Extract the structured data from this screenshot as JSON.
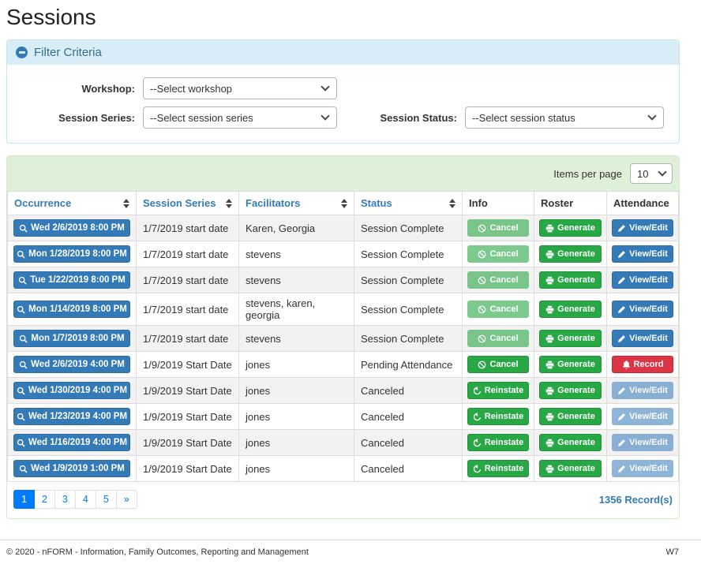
{
  "page": {
    "title": "Sessions",
    "footer": {
      "copyright": "© 2020 - nFORM - Information, Family Outcomes, Reporting and Management",
      "version": "W7"
    }
  },
  "filter": {
    "title": "Filter Criteria",
    "collapse_icon": "minus-circle-icon",
    "fields": [
      {
        "label": "Workshop:",
        "value": "--Select workshop"
      },
      {
        "label": "Session Series:",
        "value": "--Select session series"
      },
      {
        "label": "Session Status:",
        "value": "--Select session status"
      }
    ]
  },
  "table": {
    "items_per_page_label": "Items per page",
    "items_per_page_value": "10",
    "columns": [
      {
        "label": "Occurrence",
        "sortable": true
      },
      {
        "label": "Session Series",
        "sortable": true
      },
      {
        "label": "Facilitators",
        "sortable": true
      },
      {
        "label": "Status",
        "sortable": true
      },
      {
        "label": "Info",
        "sortable": false
      },
      {
        "label": "Roster",
        "sortable": false
      },
      {
        "label": "Attendance",
        "sortable": false
      }
    ],
    "rows": [
      {
        "occurrence": "Wed 2/6/2019 8:00 PM",
        "series": "1/7/2019 start date",
        "facilitators": "Karen, Georgia",
        "status": "Session Complete",
        "info": {
          "label": "Cancel",
          "icon": "ban",
          "variant": "success-disabled"
        },
        "roster": {
          "label": "Generate",
          "icon": "printer",
          "variant": "success"
        },
        "attendance": {
          "label": "View/Edit",
          "icon": "pencil",
          "variant": "primary"
        }
      },
      {
        "occurrence": "Mon 1/28/2019 8:00 PM",
        "series": "1/7/2019 start date",
        "facilitators": "stevens",
        "status": "Session Complete",
        "info": {
          "label": "Cancel",
          "icon": "ban",
          "variant": "success-disabled"
        },
        "roster": {
          "label": "Generate",
          "icon": "printer",
          "variant": "success"
        },
        "attendance": {
          "label": "View/Edit",
          "icon": "pencil",
          "variant": "primary"
        }
      },
      {
        "occurrence": "Tue 1/22/2019 8:00 PM",
        "series": "1/7/2019 start date",
        "facilitators": "stevens",
        "status": "Session Complete",
        "info": {
          "label": "Cancel",
          "icon": "ban",
          "variant": "success-disabled"
        },
        "roster": {
          "label": "Generate",
          "icon": "printer",
          "variant": "success"
        },
        "attendance": {
          "label": "View/Edit",
          "icon": "pencil",
          "variant": "primary"
        }
      },
      {
        "occurrence": "Mon 1/14/2019 8:00 PM",
        "series": "1/7/2019 start date",
        "facilitators": "stevens, karen, georgia",
        "status": "Session Complete",
        "info": {
          "label": "Cancel",
          "icon": "ban",
          "variant": "success-disabled"
        },
        "roster": {
          "label": "Generate",
          "icon": "printer",
          "variant": "success"
        },
        "attendance": {
          "label": "View/Edit",
          "icon": "pencil",
          "variant": "primary"
        }
      },
      {
        "occurrence": "Mon 1/7/2019 8:00 PM",
        "series": "1/7/2019 start date",
        "facilitators": "stevens",
        "status": "Session Complete",
        "info": {
          "label": "Cancel",
          "icon": "ban",
          "variant": "success-disabled"
        },
        "roster": {
          "label": "Generate",
          "icon": "printer",
          "variant": "success"
        },
        "attendance": {
          "label": "View/Edit",
          "icon": "pencil",
          "variant": "primary"
        }
      },
      {
        "occurrence": "Wed 2/6/2019 4:00 PM",
        "series": "1/9/2019 Start Date",
        "facilitators": "jones",
        "status": "Pending Attendance",
        "info": {
          "label": "Cancel",
          "icon": "ban",
          "variant": "success"
        },
        "roster": {
          "label": "Generate",
          "icon": "printer",
          "variant": "success"
        },
        "attendance": {
          "label": "Record",
          "icon": "bell",
          "variant": "danger"
        }
      },
      {
        "occurrence": "Wed 1/30/2019 4:00 PM",
        "series": "1/9/2019 Start Date",
        "facilitators": "jones",
        "status": "Canceled",
        "info": {
          "label": "Reinstate",
          "icon": "undo",
          "variant": "success"
        },
        "roster": {
          "label": "Generate",
          "icon": "printer",
          "variant": "success"
        },
        "attendance": {
          "label": "View/Edit",
          "icon": "pencil",
          "variant": "primary-disabled"
        }
      },
      {
        "occurrence": "Wed 1/23/2019 4:00 PM",
        "series": "1/9/2019 Start Date",
        "facilitators": "jones",
        "status": "Canceled",
        "info": {
          "label": "Reinstate",
          "icon": "undo",
          "variant": "success"
        },
        "roster": {
          "label": "Generate",
          "icon": "printer",
          "variant": "success"
        },
        "attendance": {
          "label": "View/Edit",
          "icon": "pencil",
          "variant": "primary-disabled"
        }
      },
      {
        "occurrence": "Wed 1/16/2019 4:00 PM",
        "series": "1/9/2019 Start Date",
        "facilitators": "jones",
        "status": "Canceled",
        "info": {
          "label": "Reinstate",
          "icon": "undo",
          "variant": "success"
        },
        "roster": {
          "label": "Generate",
          "icon": "printer",
          "variant": "success"
        },
        "attendance": {
          "label": "View/Edit",
          "icon": "pencil",
          "variant": "primary-disabled"
        }
      },
      {
        "occurrence": "Wed 1/9/2019 1:00 PM",
        "series": "1/9/2019 Start Date",
        "facilitators": "jones",
        "status": "Canceled",
        "info": {
          "label": "Reinstate",
          "icon": "undo",
          "variant": "success"
        },
        "roster": {
          "label": "Generate",
          "icon": "printer",
          "variant": "success"
        },
        "attendance": {
          "label": "View/Edit",
          "icon": "pencil",
          "variant": "primary-disabled"
        }
      }
    ],
    "pagination": {
      "pages": [
        "1",
        "2",
        "3",
        "4",
        "5",
        "»"
      ],
      "active": "1"
    },
    "record_count": "1356 Record(s)"
  },
  "icons": {
    "occurrence_button": "search-icon",
    "cancel_button": "ban-icon",
    "generate_button": "printer-icon",
    "view_edit_button": "pencil-icon",
    "record_button": "bell-icon",
    "reinstate_button": "undo-icon",
    "sortable_column": "sort-icon",
    "select": "chevron-down-icon",
    "filter_collapse": "minus-circle-icon"
  },
  "colors": {
    "primary_blue": "#337ab7",
    "success_green": "#28a745",
    "danger_red": "#dc3545",
    "pagination_blue": "#007bff",
    "info_header_bg": "#d9edf7",
    "info_border": "#bce8f1",
    "info_text": "#31708f",
    "success_header_bg": "#dff0d8",
    "success_border": "#d6e9c6",
    "row_stripe": "#f2f2f2",
    "table_border": "#dddddd"
  }
}
